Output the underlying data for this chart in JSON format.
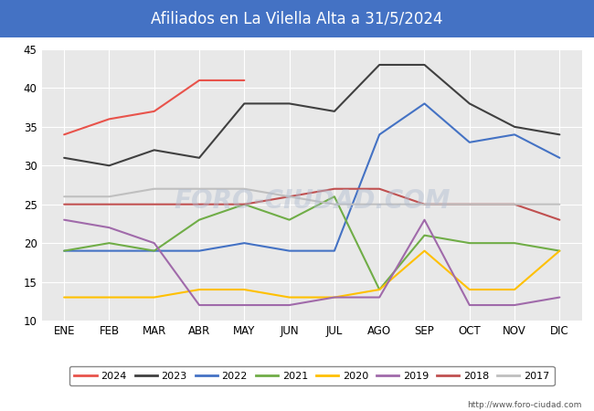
{
  "title": "Afiliados en La Vilella Alta a 31/5/2024",
  "title_color": "#ffffff",
  "title_bg_color": "#4472c4",
  "months": [
    "ENE",
    "FEB",
    "MAR",
    "ABR",
    "MAY",
    "JUN",
    "JUL",
    "AGO",
    "SEP",
    "OCT",
    "NOV",
    "DIC"
  ],
  "ylim": [
    10,
    45
  ],
  "yticks": [
    10,
    15,
    20,
    25,
    30,
    35,
    40,
    45
  ],
  "series": {
    "2024": {
      "color": "#e8534b",
      "values": [
        34,
        36,
        37,
        41,
        41,
        null,
        null,
        null,
        null,
        null,
        null,
        null
      ]
    },
    "2023": {
      "color": "#404040",
      "values": [
        31,
        30,
        32,
        31,
        38,
        38,
        37,
        43,
        43,
        38,
        35,
        34
      ]
    },
    "2022": {
      "color": "#4472c4",
      "values": [
        19,
        19,
        19,
        19,
        20,
        19,
        19,
        34,
        38,
        33,
        34,
        31
      ]
    },
    "2021": {
      "color": "#70ad47",
      "values": [
        19,
        20,
        19,
        23,
        25,
        23,
        26,
        14,
        21,
        20,
        20,
        19
      ]
    },
    "2020": {
      "color": "#ffc000",
      "values": [
        13,
        13,
        13,
        14,
        14,
        13,
        13,
        14,
        19,
        14,
        14,
        19
      ]
    },
    "2019": {
      "color": "#a06aaa",
      "values": [
        23,
        22,
        20,
        12,
        12,
        12,
        13,
        13,
        23,
        12,
        12,
        13
      ]
    },
    "2018": {
      "color": "#c05050",
      "values": [
        25,
        25,
        25,
        25,
        25,
        26,
        27,
        27,
        25,
        25,
        25,
        23
      ]
    },
    "2017": {
      "color": "#bfbfbf",
      "values": [
        26,
        26,
        27,
        27,
        27,
        26,
        25,
        25,
        25,
        25,
        25,
        25
      ]
    }
  },
  "legend_order": [
    "2024",
    "2023",
    "2022",
    "2021",
    "2020",
    "2019",
    "2018",
    "2017"
  ],
  "watermark": "FORO-CIUDAD.COM",
  "url": "http://www.foro-ciudad.com",
  "bg_plot": "#e8e8e8",
  "grid_color": "#ffffff"
}
